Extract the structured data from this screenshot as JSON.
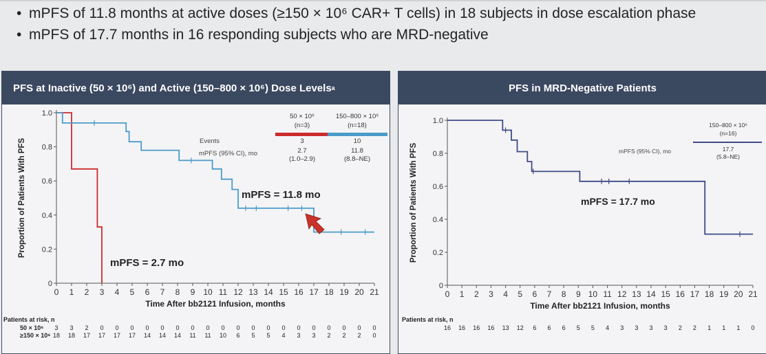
{
  "bullets": [
    "mPFS of 11.8 months at active doses (≥150 × 10⁶ CAR+ T cells) in 18 subjects in dose escalation phase",
    "mPFS of 17.7 months in 16 responding subjects who are MRD-negative"
  ],
  "colors": {
    "inactive": "#cc2b2b",
    "active": "#4a9bc9",
    "mrd": "#3d4a86",
    "header": "#3a4860",
    "arrow": "#c8332b"
  },
  "chart_data": [
    {
      "type": "line",
      "title": "PFS at Inactive (50 × 10⁶) and Active (150–800 × 10⁶) Dose Levels",
      "title_sup": "a",
      "xlabel": "Time After bb2121 Infusion, months",
      "ylabel": "Proportion of Patients With PFS",
      "xlim": [
        0,
        21
      ],
      "ylim": [
        0,
        1.0
      ],
      "xticks": [
        "0",
        "1",
        "2",
        "3",
        "4",
        "5",
        "6",
        "7",
        "8",
        "9",
        "10",
        "11",
        "12",
        "13",
        "14",
        "15",
        "16",
        "17",
        "18",
        "19",
        "20",
        "21"
      ],
      "yticks": [
        "0",
        "0.2",
        "0.4",
        "0.6",
        "0.8",
        "1.0"
      ],
      "grid": false,
      "series": [
        {
          "name": "50 × 10⁶ (n=3)",
          "color": "#cc2b2b",
          "steps": [
            [
              0,
              1.0
            ],
            [
              1,
              1.0
            ],
            [
              1,
              0.67
            ],
            [
              2.7,
              0.67
            ],
            [
              2.7,
              0.33
            ],
            [
              3,
              0.33
            ],
            [
              3,
              0
            ]
          ]
        },
        {
          "name": "150–800 × 10⁶ (n=18)",
          "color": "#4a9bc9",
          "steps": [
            [
              0,
              1.0
            ],
            [
              0.4,
              1.0
            ],
            [
              0.4,
              0.94
            ],
            [
              4.6,
              0.94
            ],
            [
              4.6,
              0.89
            ],
            [
              4.8,
              0.89
            ],
            [
              4.8,
              0.83
            ],
            [
              5.6,
              0.83
            ],
            [
              5.6,
              0.78
            ],
            [
              8.1,
              0.78
            ],
            [
              8.1,
              0.72
            ],
            [
              10.3,
              0.72
            ],
            [
              10.3,
              0.67
            ],
            [
              10.9,
              0.67
            ],
            [
              10.9,
              0.61
            ],
            [
              11.6,
              0.61
            ],
            [
              11.6,
              0.55
            ],
            [
              12.0,
              0.55
            ],
            [
              12.0,
              0.44
            ],
            [
              17.0,
              0.44
            ],
            [
              17.0,
              0.3
            ],
            [
              21,
              0.3
            ]
          ],
          "censored": [
            [
              2.5,
              0.94
            ],
            [
              8.9,
              0.72
            ],
            [
              12.5,
              0.44
            ],
            [
              13.2,
              0.44
            ],
            [
              15.3,
              0.44
            ],
            [
              16.2,
              0.44
            ],
            [
              18.8,
              0.3
            ],
            [
              20.4,
              0.3
            ]
          ]
        }
      ],
      "legend_table": {
        "columns": [
          "50 × 10⁶ (n=3)",
          "150–800 × 10⁶ (n=18)"
        ],
        "rows": [
          {
            "label": "Events",
            "values": [
              "3",
              "10"
            ]
          },
          {
            "label": "mPFS (95% CI), mo",
            "values": [
              "2.7",
              "11.8"
            ],
            "ci": [
              "(1.0–2.9)",
              "(8.8–NE)"
            ]
          }
        ]
      },
      "annotations": [
        "mPFS = 11.8 mo",
        "mPFS = 2.7 mo"
      ],
      "at_risk": {
        "title": "Patients at risk, n",
        "rows": [
          {
            "label": "50 × 10⁶",
            "values": [
              "3",
              "3",
              "2",
              "0",
              "0",
              "0",
              "0",
              "0",
              "0",
              "0",
              "0",
              "0",
              "0",
              "0",
              "0",
              "0",
              "0",
              "0",
              "0",
              "0",
              "0",
              "0"
            ]
          },
          {
            "label": "≥150 × 10⁶",
            "values": [
              "18",
              "18",
              "17",
              "17",
              "17",
              "17",
              "14",
              "14",
              "14",
              "11",
              "11",
              "10",
              "6",
              "5",
              "5",
              "4",
              "3",
              "3",
              "2",
              "2",
              "2",
              "0"
            ]
          }
        ]
      }
    },
    {
      "type": "line",
      "title": "PFS in MRD-Negative Patients",
      "xlabel": "Time After bb2121 Infusion, months",
      "ylabel": "Proportion of Patients With PFS",
      "xlim": [
        0,
        21
      ],
      "ylim": [
        0,
        1.0
      ],
      "xticks": [
        "0",
        "1",
        "2",
        "3",
        "4",
        "5",
        "6",
        "7",
        "8",
        "9",
        "10",
        "11",
        "12",
        "13",
        "14",
        "15",
        "16",
        "17",
        "18",
        "19",
        "20",
        "21"
      ],
      "yticks": [
        "0",
        "0.2",
        "0.4",
        "0.6",
        "0.8",
        "1.0"
      ],
      "grid": false,
      "series": [
        {
          "name": "150–800 × 10⁶ (n=16)",
          "color": "#3d4a86",
          "steps": [
            [
              0,
              1.0
            ],
            [
              3.8,
              1.0
            ],
            [
              3.8,
              0.94
            ],
            [
              4.4,
              0.94
            ],
            [
              4.4,
              0.88
            ],
            [
              4.8,
              0.88
            ],
            [
              4.8,
              0.81
            ],
            [
              5.5,
              0.81
            ],
            [
              5.5,
              0.75
            ],
            [
              5.8,
              0.75
            ],
            [
              5.8,
              0.69
            ],
            [
              9.1,
              0.69
            ],
            [
              9.1,
              0.63
            ],
            [
              17.7,
              0.63
            ],
            [
              17.7,
              0.31
            ],
            [
              21,
              0.31
            ]
          ],
          "censored": [
            [
              4.0,
              0.94
            ],
            [
              5.9,
              0.69
            ],
            [
              10.6,
              0.63
            ],
            [
              11.1,
              0.63
            ],
            [
              12.5,
              0.63
            ],
            [
              20.1,
              0.31
            ]
          ]
        }
      ],
      "legend_table": {
        "columns": [
          "150–800 × 10⁶ (n=16)"
        ],
        "rows": [
          {
            "label": "mPFS (95% CI), mo",
            "values": [
              "17.7"
            ],
            "ci": [
              "(5.8–NE)"
            ]
          }
        ]
      },
      "annotations": [
        "mPFS = 17.7 mo"
      ],
      "at_risk": {
        "title": "Patients at risk, n",
        "rows": [
          {
            "label": "",
            "values": [
              "16",
              "16",
              "16",
              "16",
              "13",
              "12",
              "6",
              "6",
              "6",
              "5",
              "5",
              "4",
              "3",
              "3",
              "3",
              "3",
              "2",
              "2",
              "1",
              "1",
              "1",
              "0"
            ]
          }
        ]
      }
    }
  ]
}
